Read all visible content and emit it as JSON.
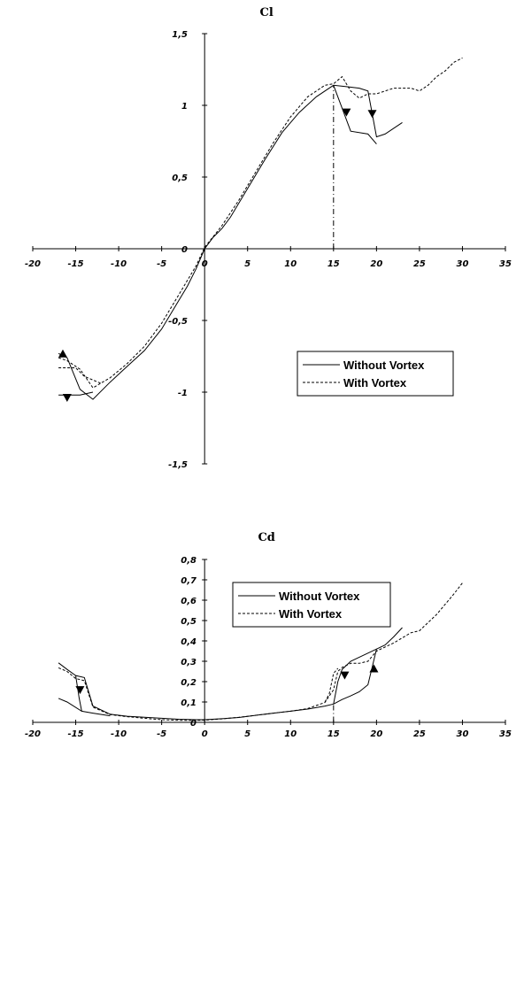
{
  "chart_data": [
    {
      "type": "line",
      "title": "Cl",
      "xlabel": "",
      "ylabel": "",
      "xlim": [
        -20,
        35
      ],
      "ylim": [
        -1.5,
        1.5
      ],
      "x_ticks": [
        "-20",
        "-15",
        "-10",
        "-5",
        "0",
        "5",
        "10",
        "15",
        "20",
        "25",
        "30",
        "35"
      ],
      "y_ticks": [
        "1,5",
        "1",
        "0,5",
        "0",
        "-0,5",
        "-1",
        "-1,5"
      ],
      "legend": {
        "placement": "lower-right",
        "entries": [
          "Without Vortex",
          "With Vortex"
        ]
      },
      "series": [
        {
          "name": "Without Vortex",
          "style": "solid",
          "segments": [
            [
              [
                -17,
                -0.73
              ],
              [
                -16,
                -0.76
              ],
              [
                -14.5,
                -0.98
              ],
              [
                -13,
                -1.05
              ],
              [
                -11,
                -0.93
              ],
              [
                -9,
                -0.82
              ],
              [
                -7,
                -0.71
              ],
              [
                -5,
                -0.56
              ],
              [
                -3,
                -0.36
              ],
              [
                -2,
                -0.26
              ],
              [
                -1,
                -0.14
              ],
              [
                0,
                0
              ],
              [
                1,
                0.08
              ],
              [
                2,
                0.14
              ],
              [
                3,
                0.22
              ],
              [
                5,
                0.42
              ],
              [
                7,
                0.62
              ],
              [
                9,
                0.81
              ],
              [
                11,
                0.95
              ],
              [
                13,
                1.06
              ],
              [
                15,
                1.14
              ],
              [
                16.5,
                1.13
              ],
              [
                18,
                1.12
              ],
              [
                19,
                1.1
              ],
              [
                20,
                0.78
              ],
              [
                21,
                0.8
              ],
              [
                23,
                0.88
              ]
            ],
            [
              [
                -17,
                -1.02
              ],
              [
                -14.5,
                -1.02
              ],
              [
                -13,
                -1.0
              ]
            ],
            [
              [
                15,
                1.14
              ],
              [
                16,
                0.98
              ],
              [
                17,
                0.82
              ],
              [
                19,
                0.8
              ],
              [
                20,
                0.73
              ]
            ]
          ]
        },
        {
          "name": "With Vortex",
          "style": "dashed",
          "segments": [
            [
              [
                -17,
                -0.76
              ],
              [
                -16,
                -0.78
              ],
              [
                -14.5,
                -0.84
              ],
              [
                -13,
                -0.97
              ],
              [
                -11,
                -0.9
              ],
              [
                -9,
                -0.8
              ],
              [
                -7,
                -0.68
              ],
              [
                -5,
                -0.52
              ],
              [
                -3,
                -0.32
              ],
              [
                -1,
                -0.12
              ],
              [
                0,
                0.01
              ],
              [
                2,
                0.16
              ],
              [
                4,
                0.34
              ],
              [
                6,
                0.54
              ],
              [
                8,
                0.74
              ],
              [
                10,
                0.92
              ],
              [
                12,
                1.06
              ],
              [
                14,
                1.14
              ],
              [
                15,
                1.15
              ],
              [
                16,
                1.2
              ],
              [
                17,
                1.1
              ],
              [
                18,
                1.05
              ],
              [
                19,
                1.08
              ],
              [
                20,
                1.08
              ],
              [
                22,
                1.12
              ],
              [
                24,
                1.12
              ],
              [
                25,
                1.1
              ],
              [
                26,
                1.14
              ],
              [
                27,
                1.2
              ],
              [
                28,
                1.24
              ],
              [
                29,
                1.3
              ],
              [
                30,
                1.33
              ]
            ],
            [
              [
                -17,
                -0.83
              ],
              [
                -15,
                -0.83
              ],
              [
                -14,
                -0.89
              ],
              [
                -12,
                -0.94
              ]
            ]
          ]
        }
      ],
      "annotations": [
        {
          "type": "vline",
          "x": 15,
          "from_y": 0,
          "to_y": 1.14
        },
        {
          "type": "arrow",
          "x": -16.5,
          "y": -0.73,
          "direction": "up"
        },
        {
          "type": "arrow",
          "x": -16,
          "y": -1.04,
          "direction": "down"
        },
        {
          "type": "arrow",
          "x": 16.5,
          "y": 0.95,
          "direction": "down"
        },
        {
          "type": "arrow",
          "x": 19.5,
          "y": 0.94,
          "direction": "down"
        }
      ]
    },
    {
      "type": "line",
      "title": "Cd",
      "xlabel": "",
      "ylabel": "",
      "xlim": [
        -20,
        35
      ],
      "ylim": [
        0,
        0.8
      ],
      "x_ticks": [
        "-20",
        "-15",
        "-10",
        "-5",
        "0",
        "5",
        "10",
        "15",
        "20",
        "25",
        "30",
        "35"
      ],
      "y_ticks": [
        "0,8",
        "0,7",
        "0,6",
        "0,5",
        "0,4",
        "0,3",
        "0,2",
        "0,1",
        "0"
      ],
      "legend": {
        "placement": "top-center",
        "entries": [
          "Without Vortex",
          "With Vortex"
        ]
      },
      "series": [
        {
          "name": "Without Vortex",
          "style": "solid",
          "segments": [
            [
              [
                -17,
                0.292
              ],
              [
                -16,
                0.26
              ],
              [
                -15,
                0.23
              ],
              [
                -14,
                0.22
              ],
              [
                -13,
                0.08
              ],
              [
                -11,
                0.04
              ],
              [
                -9,
                0.03
              ],
              [
                -7,
                0.025
              ],
              [
                -5,
                0.02
              ],
              [
                -3,
                0.015
              ],
              [
                -1,
                0.013
              ],
              [
                0,
                0.013
              ],
              [
                2,
                0.018
              ],
              [
                4,
                0.024
              ],
              [
                6,
                0.035
              ],
              [
                8,
                0.045
              ],
              [
                10,
                0.055
              ],
              [
                12,
                0.065
              ],
              [
                14,
                0.08
              ],
              [
                15,
                0.09
              ],
              [
                16,
                0.112
              ],
              [
                17,
                0.13
              ],
              [
                18,
                0.15
              ],
              [
                19,
                0.185
              ],
              [
                20,
                0.36
              ],
              [
                21,
                0.38
              ],
              [
                22,
                0.42
              ],
              [
                23,
                0.465
              ]
            ],
            [
              [
                -17,
                0.118
              ],
              [
                -16,
                0.1
              ],
              [
                -14.3,
                0.055
              ],
              [
                -13,
                0.045
              ],
              [
                -11,
                0.032
              ]
            ],
            [
              [
                15,
                0.09
              ],
              [
                15.5,
                0.2
              ],
              [
                16,
                0.26
              ],
              [
                17,
                0.3
              ],
              [
                18,
                0.32
              ],
              [
                20,
                0.36
              ]
            ],
            [
              [
                -15,
                0.23
              ],
              [
                -14.6,
                0.12
              ],
              [
                -14.3,
                0.055
              ]
            ]
          ]
        },
        {
          "name": "With Vortex",
          "style": "dashed",
          "segments": [
            [
              [
                -17,
                0.268
              ],
              [
                -16,
                0.25
              ],
              [
                -15,
                0.215
              ],
              [
                -14,
                0.205
              ],
              [
                -13,
                0.075
              ],
              [
                -11,
                0.038
              ],
              [
                -9,
                0.028
              ],
              [
                -7,
                0.02
              ],
              [
                -5,
                0.013
              ],
              [
                -3,
                0.01
              ],
              [
                -1,
                0.01
              ],
              [
                0,
                0.011
              ],
              [
                2,
                0.017
              ],
              [
                4,
                0.025
              ],
              [
                6,
                0.035
              ],
              [
                8,
                0.045
              ],
              [
                10,
                0.055
              ],
              [
                12,
                0.068
              ],
              [
                14,
                0.098
              ],
              [
                15,
                0.16
              ],
              [
                15.5,
                0.25
              ],
              [
                16,
                0.27
              ],
              [
                17,
                0.29
              ],
              [
                18,
                0.29
              ],
              [
                19,
                0.3
              ],
              [
                20,
                0.35
              ],
              [
                22,
                0.39
              ],
              [
                24,
                0.44
              ],
              [
                25,
                0.45
              ],
              [
                26,
                0.49
              ],
              [
                27,
                0.53
              ],
              [
                28,
                0.58
              ],
              [
                29,
                0.63
              ],
              [
                30,
                0.685
              ]
            ],
            [
              [
                14,
                0.1
              ],
              [
                14.5,
                0.14
              ],
              [
                15,
                0.24
              ],
              [
                15.5,
                0.265
              ]
            ]
          ]
        }
      ],
      "annotations": [
        {
          "type": "vline",
          "x": 15,
          "from_y": 0.085,
          "to_y": 0
        },
        {
          "type": "arrow",
          "x": -14.5,
          "y": 0.158,
          "direction": "down"
        },
        {
          "type": "arrow",
          "x": 16.3,
          "y": 0.23,
          "direction": "down"
        },
        {
          "type": "arrow",
          "x": 19.7,
          "y": 0.265,
          "direction": "up"
        }
      ]
    }
  ]
}
